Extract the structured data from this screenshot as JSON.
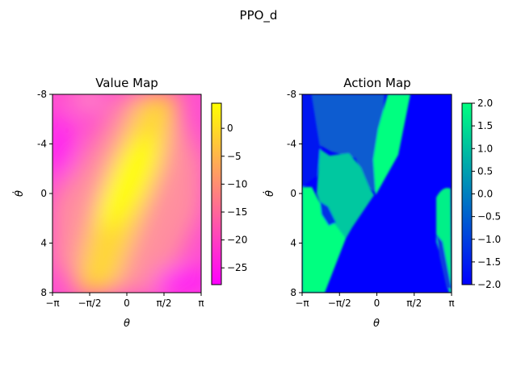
{
  "suptitle": "PPO_d",
  "chart_data": [
    {
      "type": "heatmap",
      "title": "Value Map",
      "xlabel": "θ",
      "ylabel": "θ̇",
      "x_range": [
        -3.14159,
        3.14159
      ],
      "y_range": [
        -8,
        8
      ],
      "xtick_labels": [
        "−π",
        "−π/2",
        "0",
        "π/2",
        "π"
      ],
      "ytick_labels": [
        "-8",
        "-4",
        "0",
        "4",
        "8"
      ],
      "colormap": "spring",
      "colorbar": {
        "range": [
          -28,
          4.5
        ],
        "ticks": [
          0,
          -5,
          -10,
          -15,
          -20,
          -25
        ],
        "tick_labels": [
          "0",
          "−5",
          "−10",
          "−15",
          "−20",
          "−25"
        ]
      }
    },
    {
      "type": "heatmap",
      "title": "Action Map",
      "xlabel": "θ",
      "ylabel": "θ̇",
      "x_range": [
        -3.14159,
        3.14159
      ],
      "y_range": [
        -8,
        8
      ],
      "xtick_labels": [
        "−π",
        "−π/2",
        "0",
        "π/2",
        "π"
      ],
      "ytick_labels": [
        "-8",
        "-4",
        "0",
        "4",
        "8"
      ],
      "colormap": "winter",
      "colorbar": {
        "range": [
          -2,
          2
        ],
        "ticks": [
          2.0,
          1.5,
          1.0,
          0.5,
          0.0,
          -0.5,
          -1.0,
          -1.5,
          -2.0
        ],
        "tick_labels": [
          "2.0",
          "1.5",
          "1.0",
          "0.5",
          "0.0",
          "−0.5",
          "−1.0",
          "−1.5",
          "−2.0"
        ]
      }
    }
  ]
}
